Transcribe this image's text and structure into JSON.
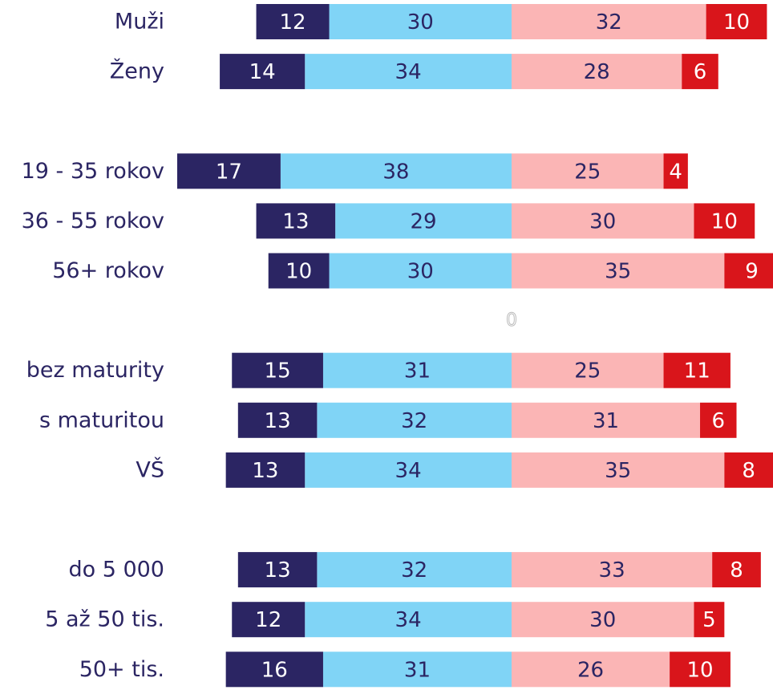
{
  "chart_data": {
    "type": "diverging-bar",
    "categories": [
      "Muži",
      "Ženy",
      null,
      "19 - 35 rokov",
      "36 - 55 rokov",
      "56+ rokov",
      null,
      "bez maturity",
      "s maturitou",
      "VŠ",
      null,
      "do 5 000",
      "5 až 50 tis.",
      "50+ tis."
    ],
    "series": [
      {
        "color": "#2b2563",
        "values": [
          12,
          14,
          null,
          17,
          13,
          10,
          null,
          15,
          13,
          13,
          null,
          13,
          12,
          16
        ]
      },
      {
        "color": "#80d4f6",
        "values": [
          30,
          34,
          null,
          38,
          29,
          30,
          null,
          31,
          32,
          34,
          null,
          32,
          34,
          31
        ]
      },
      {
        "color": "#fbb5b5",
        "values": [
          32,
          28,
          null,
          25,
          30,
          35,
          null,
          25,
          31,
          35,
          null,
          33,
          30,
          26
        ]
      },
      {
        "color": "#d9151b",
        "values": [
          10,
          6,
          null,
          4,
          10,
          9,
          null,
          11,
          6,
          8,
          null,
          8,
          5,
          10
        ]
      }
    ],
    "xlim": [
      -55,
      43
    ],
    "xticks": [
      0
    ]
  }
}
